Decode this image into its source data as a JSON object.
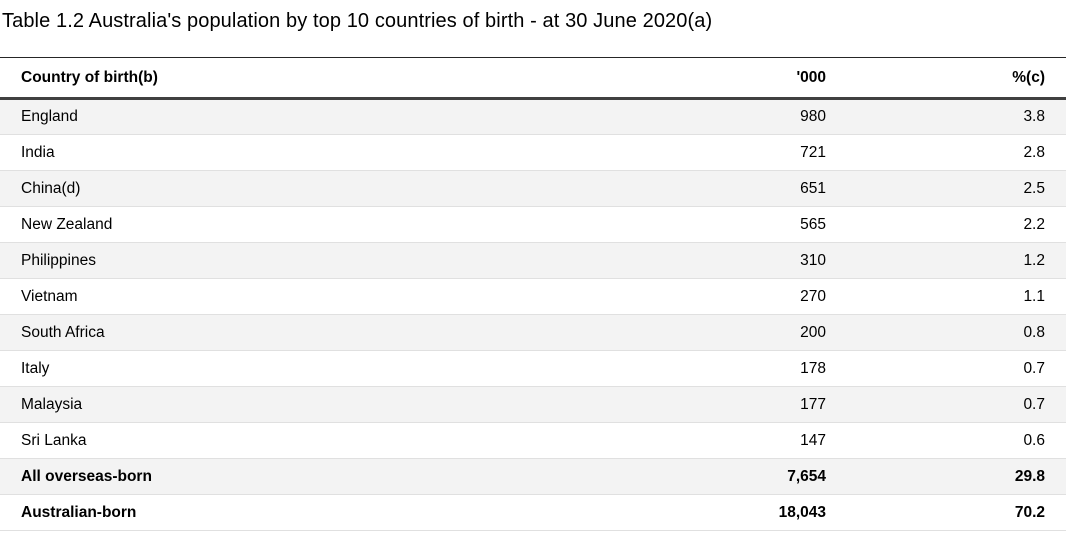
{
  "title": "Table 1.2 Australia's population by top 10 countries of birth - at 30 June 2020(a)",
  "table": {
    "columns": [
      {
        "label": "Country of birth(b)"
      },
      {
        "label": "'000"
      },
      {
        "label": "%(c)"
      }
    ],
    "rows": [
      {
        "country": "England",
        "thousands": "980",
        "percent": "3.8"
      },
      {
        "country": "India",
        "thousands": "721",
        "percent": "2.8"
      },
      {
        "country": "China(d)",
        "thousands": "651",
        "percent": "2.5"
      },
      {
        "country": "New Zealand",
        "thousands": "565",
        "percent": "2.2"
      },
      {
        "country": "Philippines",
        "thousands": "310",
        "percent": "1.2"
      },
      {
        "country": "Vietnam",
        "thousands": "270",
        "percent": "1.1"
      },
      {
        "country": "South Africa",
        "thousands": "200",
        "percent": "0.8"
      },
      {
        "country": "Italy",
        "thousands": "178",
        "percent": "0.7"
      },
      {
        "country": "Malaysia",
        "thousands": "177",
        "percent": "0.7"
      },
      {
        "country": "Sri Lanka",
        "thousands": "147",
        "percent": "0.6"
      }
    ],
    "summary_rows": [
      {
        "country": "All overseas-born",
        "thousands": "7,654",
        "percent": "29.8"
      },
      {
        "country": "Australian-born",
        "thousands": "18,043",
        "percent": "70.2"
      }
    ]
  },
  "colors": {
    "text": "#000000",
    "top_rule": "#262626",
    "header_rule_thick": "#404040",
    "row_separator": "#e0e0e0",
    "row_stripe": "#f3f3f3"
  },
  "chart_data": {
    "type": "table",
    "title": "Table 1.2 Australia's population by top 10 countries of birth - at 30 June 2020(a)",
    "columns": [
      "Country of birth(b)",
      "'000",
      "%(c)"
    ],
    "rows": [
      [
        "England",
        980,
        3.8
      ],
      [
        "India",
        721,
        2.8
      ],
      [
        "China(d)",
        651,
        2.5
      ],
      [
        "New Zealand",
        565,
        2.2
      ],
      [
        "Philippines",
        310,
        1.2
      ],
      [
        "Vietnam",
        270,
        1.1
      ],
      [
        "South Africa",
        200,
        0.8
      ],
      [
        "Italy",
        178,
        0.7
      ],
      [
        "Malaysia",
        177,
        0.7
      ],
      [
        "Sri Lanka",
        147,
        0.6
      ]
    ],
    "summary_rows": [
      [
        "All overseas-born",
        7654,
        29.8
      ],
      [
        "Australian-born",
        18043,
        70.2
      ]
    ],
    "layout_hints": {
      "numeric_columns_right_aligned": true,
      "zebra_striping": "odd rows shaded",
      "summary_rows_bold": true
    }
  }
}
